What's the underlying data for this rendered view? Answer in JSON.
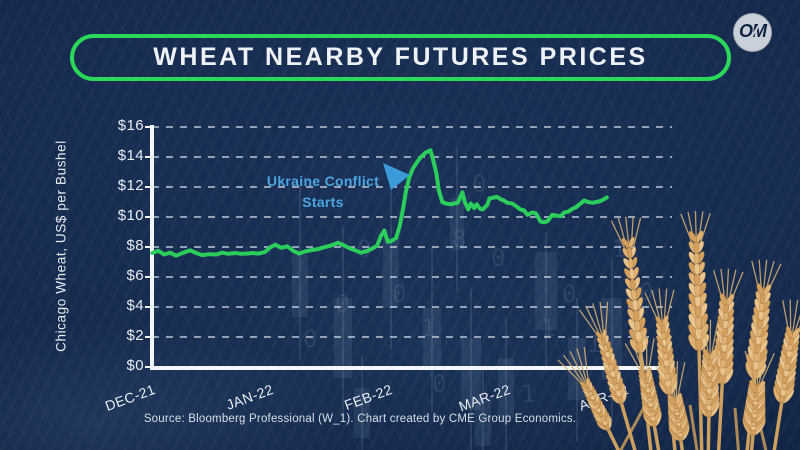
{
  "header": {
    "title": "WHEAT NEARBY FUTURES PRICES",
    "logo_text": "OM"
  },
  "annotation": {
    "line1": "Ukraine Conflict",
    "line2": "Starts",
    "arrow_color": "#3b9bd8"
  },
  "footer": {
    "source": "Source: Bloomberg Professional (W_1).  Chart created by CME Group Economics."
  },
  "colors": {
    "background": "#152a4d",
    "accent_green": "#2bd95a",
    "line_green": "#2bce5b",
    "annotation_blue": "#4ba6e0",
    "axis_white": "#f3f6fa",
    "wheat_gold": "#e2ba7e"
  },
  "chart_data": {
    "type": "line",
    "title": "Wheat Nearby Futures Prices",
    "ylabel": "Chicago Wheat, US$ per Bushel",
    "xlabel": "",
    "ylim": [
      0,
      16
    ],
    "grid": "horizontal dashed",
    "legend": null,
    "y_ticks": [
      "$16",
      "$14",
      "$12",
      "$10",
      "$8",
      "$6",
      "$4",
      "$2",
      "$0"
    ],
    "y_tick_values": [
      16,
      14,
      12,
      10,
      8,
      6,
      4,
      2,
      0
    ],
    "x_ticks": [
      "DEC-21",
      "JAN-22",
      "FEB-22",
      "MAR-22",
      "APR-22"
    ],
    "x_unit": "months since Dec-21 tick",
    "series": [
      {
        "name": "Wheat nearby futures (W_1)",
        "color": "#2bce5b",
        "points": [
          [
            0.02,
            7.6
          ],
          [
            0.07,
            7.75
          ],
          [
            0.12,
            7.5
          ],
          [
            0.17,
            7.62
          ],
          [
            0.22,
            7.42
          ],
          [
            0.27,
            7.58
          ],
          [
            0.34,
            7.78
          ],
          [
            0.39,
            7.6
          ],
          [
            0.44,
            7.46
          ],
          [
            0.5,
            7.52
          ],
          [
            0.56,
            7.5
          ],
          [
            0.61,
            7.62
          ],
          [
            0.66,
            7.55
          ],
          [
            0.72,
            7.6
          ],
          [
            0.77,
            7.55
          ],
          [
            0.82,
            7.56
          ],
          [
            0.87,
            7.6
          ],
          [
            0.92,
            7.56
          ],
          [
            0.97,
            7.66
          ],
          [
            1.02,
            8.0
          ],
          [
            1.06,
            8.15
          ],
          [
            1.11,
            7.95
          ],
          [
            1.16,
            8.05
          ],
          [
            1.21,
            7.75
          ],
          [
            1.26,
            7.56
          ],
          [
            1.31,
            7.7
          ],
          [
            1.37,
            7.8
          ],
          [
            1.42,
            7.86
          ],
          [
            1.48,
            8.0
          ],
          [
            1.53,
            8.1
          ],
          [
            1.59,
            8.28
          ],
          [
            1.64,
            8.1
          ],
          [
            1.69,
            7.9
          ],
          [
            1.74,
            7.76
          ],
          [
            1.78,
            7.62
          ],
          [
            1.83,
            7.72
          ],
          [
            1.88,
            7.9
          ],
          [
            1.92,
            8.1
          ],
          [
            1.95,
            8.7
          ],
          [
            1.98,
            9.1
          ],
          [
            2.01,
            8.35
          ],
          [
            2.04,
            8.4
          ],
          [
            2.08,
            8.6
          ],
          [
            2.11,
            9.4
          ],
          [
            2.14,
            10.6
          ],
          [
            2.16,
            11.6
          ],
          [
            2.19,
            12.6
          ],
          [
            2.22,
            13.2
          ],
          [
            2.26,
            13.7
          ],
          [
            2.29,
            14.0
          ],
          [
            2.33,
            14.3
          ],
          [
            2.37,
            14.45
          ],
          [
            2.39,
            13.9
          ],
          [
            2.42,
            12.9
          ],
          [
            2.44,
            11.8
          ],
          [
            2.47,
            11.0
          ],
          [
            2.5,
            10.9
          ],
          [
            2.54,
            10.85
          ],
          [
            2.57,
            10.9
          ],
          [
            2.6,
            10.95
          ],
          [
            2.64,
            11.65
          ],
          [
            2.66,
            11.0
          ],
          [
            2.69,
            10.5
          ],
          [
            2.71,
            10.9
          ],
          [
            2.74,
            10.6
          ],
          [
            2.76,
            10.85
          ],
          [
            2.79,
            10.55
          ],
          [
            2.81,
            10.5
          ],
          [
            2.85,
            10.8
          ],
          [
            2.87,
            11.25
          ],
          [
            2.91,
            11.3
          ],
          [
            2.93,
            11.35
          ],
          [
            2.96,
            11.2
          ],
          [
            2.99,
            11.1
          ],
          [
            3.02,
            10.95
          ],
          [
            3.06,
            10.9
          ],
          [
            3.09,
            10.75
          ],
          [
            3.13,
            10.5
          ],
          [
            3.16,
            10.45
          ],
          [
            3.19,
            10.15
          ],
          [
            3.23,
            10.3
          ],
          [
            3.26,
            10.25
          ],
          [
            3.3,
            9.7
          ],
          [
            3.33,
            9.65
          ],
          [
            3.36,
            9.72
          ],
          [
            3.4,
            10.15
          ],
          [
            3.43,
            10.1
          ],
          [
            3.47,
            10.05
          ],
          [
            3.5,
            10.3
          ],
          [
            3.53,
            10.35
          ],
          [
            3.57,
            10.55
          ],
          [
            3.6,
            10.65
          ],
          [
            3.63,
            10.85
          ],
          [
            3.67,
            11.1
          ],
          [
            3.7,
            11.0
          ],
          [
            3.74,
            10.95
          ],
          [
            3.77,
            11.0
          ],
          [
            3.8,
            11.05
          ],
          [
            3.84,
            11.2
          ],
          [
            3.86,
            11.3
          ]
        ]
      }
    ],
    "annotations": [
      {
        "text": "Ukraine Conflict Starts",
        "points_at": "start of late-Feb 2022 price spike"
      }
    ]
  }
}
